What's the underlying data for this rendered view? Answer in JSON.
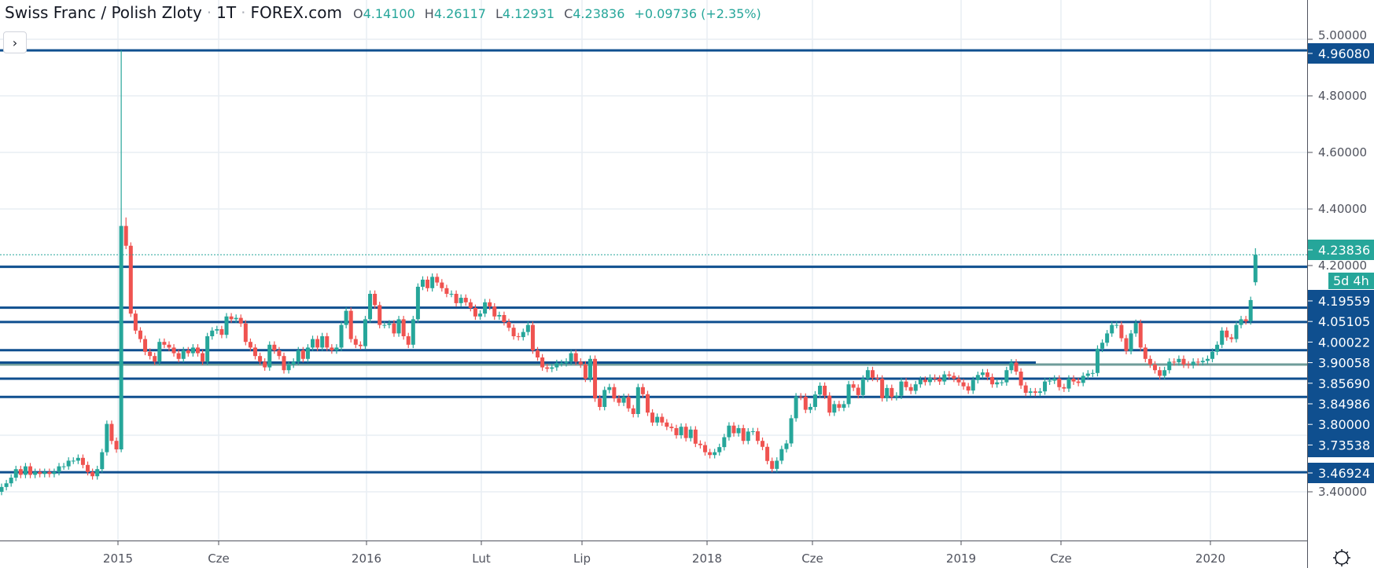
{
  "header": {
    "symbol": "Swiss Franc / Polish Zloty",
    "interval": "1T",
    "exchange": "FOREX.com",
    "separator": "·",
    "o_key": "O",
    "o_val": "4.14100",
    "h_key": "H",
    "h_val": "4.26117",
    "l_key": "L",
    "l_val": "4.12931",
    "c_key": "C",
    "c_val": "4.23836",
    "change": "+0.09736 (+2.35%)"
  },
  "expand_button": "›",
  "colors": {
    "up": "#26a69a",
    "down": "#ef5350",
    "level": "#0f4f8f",
    "level_alt": "#6f9c9a",
    "grid": "#e9eef4",
    "axis": "#50535e"
  },
  "chart_data": {
    "type": "candlestick",
    "title": "Swiss Franc / Polish Zloty · 1T · FOREX.com",
    "ylim": [
      3.25,
      5.05
    ],
    "y_ticks": [
      "5.00000",
      "4.80000",
      "4.60000",
      "4.40000",
      "4.20000",
      "3.40000"
    ],
    "y_tick_values": [
      5.0,
      4.8,
      4.6,
      4.4,
      4.2,
      3.4
    ],
    "grid_values": [
      5.0,
      4.8,
      4.6,
      4.4,
      4.2,
      4.0,
      3.8,
      3.6,
      3.4
    ],
    "x_ticks": [
      "2015",
      "Cze",
      "2016",
      "Lut",
      "Lip",
      "2018",
      "Cze",
      "2019",
      "Cze",
      "2020"
    ],
    "first_open": 3.4,
    "closes": [
      3.417,
      3.43,
      3.45,
      3.48,
      3.46,
      3.49,
      3.46,
      3.47,
      3.463,
      3.47,
      3.463,
      3.47,
      3.49,
      3.49,
      3.51,
      3.51,
      3.52,
      3.495,
      3.47,
      3.455,
      3.48,
      3.54,
      3.64,
      3.58,
      3.55,
      4.34,
      4.27,
      4.03,
      3.97,
      3.94,
      3.895,
      3.88,
      3.86,
      3.93,
      3.92,
      3.91,
      3.89,
      3.87,
      3.9,
      3.89,
      3.91,
      3.89,
      3.86,
      3.95,
      3.97,
      3.975,
      3.955,
      4.02,
      4.01,
      4.015,
      3.995,
      3.93,
      3.91,
      3.88,
      3.86,
      3.84,
      3.92,
      3.9,
      3.88,
      3.83,
      3.85,
      3.86,
      3.9,
      3.87,
      3.91,
      3.94,
      3.91,
      3.95,
      3.91,
      3.9,
      3.91,
      3.99,
      4.04,
      3.94,
      3.92,
      3.915,
      4.01,
      4.1,
      4.06,
      3.99,
      3.99,
      3.995,
      3.96,
      4.01,
      3.95,
      3.92,
      4.01,
      4.125,
      4.15,
      4.12,
      4.16,
      4.14,
      4.12,
      4.1,
      4.1,
      4.067,
      4.086,
      4.07,
      4.05,
      4.02,
      4.03,
      4.07,
      4.055,
      4.02,
      4.025,
      4.0,
      3.98,
      3.95,
      3.947,
      3.965,
      3.99,
      3.9,
      3.875,
      3.84,
      3.835,
      3.84,
      3.855,
      3.855,
      3.86,
      3.89,
      3.86,
      3.85,
      3.8,
      3.87,
      3.73,
      3.7,
      3.76,
      3.77,
      3.73,
      3.715,
      3.735,
      3.695,
      3.675,
      3.77,
      3.745,
      3.68,
      3.645,
      3.665,
      3.645,
      3.63,
      3.625,
      3.6,
      3.63,
      3.59,
      3.62,
      3.57,
      3.565,
      3.54,
      3.53,
      3.54,
      3.558,
      3.593,
      3.634,
      3.607,
      3.625,
      3.58,
      3.613,
      3.614,
      3.58,
      3.559,
      3.509,
      3.481,
      3.51,
      3.551,
      3.571,
      3.66,
      3.737,
      3.736,
      3.69,
      3.7,
      3.744,
      3.775,
      3.74,
      3.68,
      3.71,
      3.697,
      3.71,
      3.78,
      3.768,
      3.742,
      3.8,
      3.83,
      3.803,
      3.8,
      3.731,
      3.767,
      3.735,
      3.74,
      3.79,
      3.77,
      3.757,
      3.78,
      3.796,
      3.788,
      3.803,
      3.8,
      3.79,
      3.815,
      3.81,
      3.8,
      3.787,
      3.773,
      3.758,
      3.795,
      3.813,
      3.822,
      3.806,
      3.78,
      3.787,
      3.787,
      3.83,
      3.857,
      3.825,
      3.776,
      3.75,
      3.755,
      3.75,
      3.755,
      3.79,
      3.793,
      3.8,
      3.77,
      3.765,
      3.8,
      3.79,
      3.785,
      3.81,
      3.818,
      3.82,
      3.906,
      3.927,
      3.96,
      3.99,
      3.99,
      3.943,
      3.898,
      3.96,
      3.997,
      3.91,
      3.87,
      3.85,
      3.83,
      3.81,
      3.83,
      3.86,
      3.858,
      3.87,
      3.85,
      3.848,
      3.86,
      3.858,
      3.863,
      3.87,
      3.895,
      3.92,
      3.97,
      3.946,
      3.94,
      3.99,
      4.01,
      4.003,
      4.078,
      4.23836
    ],
    "ohlc_overrides": {
      "25": {
        "h": 4.9608,
        "l": 3.54
      },
      "26": {
        "h": 4.37
      },
      "161": {
        "l": 3.469
      },
      "262": {
        "o": 4.141,
        "h": 4.26117,
        "l": 4.12931
      }
    },
    "levels": [
      {
        "price": 4.9608,
        "label": "4.96080"
      },
      {
        "price": 4.19559,
        "label": "4.19559"
      },
      {
        "price": 4.05105,
        "label": "4.05105"
      },
      {
        "price": 4.00022,
        "label": "4.00022"
      },
      {
        "price": 3.90058,
        "label": "3.90058"
      },
      {
        "price": 3.84986,
        "label": "3.84986",
        "style": "alt"
      },
      {
        "price": 3.8569,
        "label": "3.85690",
        "style": "partial"
      },
      {
        "price": 3.8,
        "label": "3.80000"
      },
      {
        "price": 3.73538,
        "label": "3.73538"
      },
      {
        "price": 3.46924,
        "label": "3.46924"
      }
    ],
    "last_price": {
      "price": 4.23836,
      "label": "4.23836",
      "countdown": "5d 4h"
    }
  },
  "settings_icon": "gear-icon"
}
